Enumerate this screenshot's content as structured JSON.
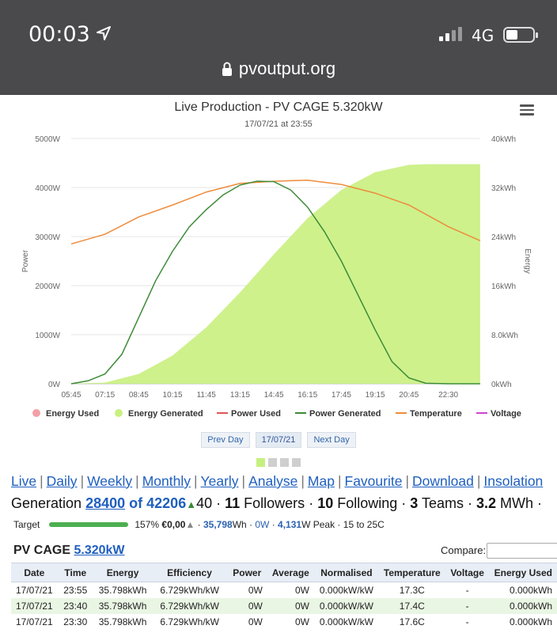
{
  "status": {
    "time": "00:03",
    "network": "4G"
  },
  "browser": {
    "url": "pvoutput.org"
  },
  "colors": {
    "energy_generated": "#c9f07f",
    "power_generated": "#3d8b37",
    "temperature": "#ee8c3c",
    "energy_used": "#f2a0a6",
    "power_used": "#e05555",
    "voltage": "#cc44cc"
  },
  "chart_data": {
    "type": "area",
    "title": "Live Production - PV CAGE 5.320kW",
    "subtitle": "17/07/21 at 23:55",
    "ylabel": "Power",
    "y2label": "Energy",
    "ylim": [
      0,
      5000
    ],
    "y2lim": [
      0,
      40
    ],
    "y_ticks": [
      "0W",
      "1000W",
      "2000W",
      "3000W",
      "4000W",
      "5000W"
    ],
    "y2_ticks": [
      "0kWh",
      "8.0kWh",
      "16kWh",
      "24kWh",
      "32kWh",
      "40kWh"
    ],
    "x_ticks": [
      "05:45",
      "07:15",
      "08:45",
      "10:15",
      "11:45",
      "13:15",
      "14:45",
      "16:15",
      "17:45",
      "19:15",
      "20:45",
      "22:30"
    ],
    "legend": [
      "Energy Used",
      "Energy Generated",
      "Power Used",
      "Power Generated",
      "Temperature",
      "Voltage"
    ],
    "series": [
      {
        "name": "Energy Generated",
        "unit": "kWh",
        "x": [
          "05:45",
          "07:15",
          "08:45",
          "10:15",
          "11:45",
          "13:15",
          "14:45",
          "16:15",
          "17:45",
          "19:15",
          "20:45",
          "21:30",
          "22:30",
          "23:55"
        ],
        "values": [
          0,
          0.2,
          1.6,
          4.6,
          9.2,
          14.9,
          21.1,
          27.0,
          31.6,
          34.5,
          35.7,
          35.8,
          35.8,
          35.8
        ]
      },
      {
        "name": "Power Generated",
        "unit": "W",
        "x": [
          "05:45",
          "06:30",
          "07:15",
          "08:00",
          "08:45",
          "09:30",
          "10:15",
          "11:00",
          "11:45",
          "12:30",
          "13:15",
          "14:00",
          "14:45",
          "15:30",
          "16:15",
          "17:00",
          "17:45",
          "18:30",
          "19:15",
          "20:00",
          "20:45",
          "21:30",
          "22:30",
          "23:55"
        ],
        "values": [
          0,
          60,
          200,
          600,
          1350,
          2100,
          2700,
          3200,
          3550,
          3850,
          4050,
          4130,
          4120,
          3950,
          3600,
          3100,
          2500,
          1800,
          1100,
          450,
          120,
          10,
          0,
          0
        ]
      },
      {
        "name": "Temperature",
        "unit": "C",
        "x": [
          "05:45",
          "07:15",
          "08:45",
          "10:15",
          "11:45",
          "13:15",
          "14:45",
          "16:15",
          "17:45",
          "19:15",
          "20:45",
          "22:30",
          "23:55"
        ],
        "values": [
          17.0,
          17.9,
          19.5,
          20.6,
          21.8,
          22.6,
          22.8,
          22.9,
          22.5,
          21.7,
          20.6,
          18.6,
          17.3
        ]
      }
    ]
  },
  "chart_nav": {
    "prev": "Prev Day",
    "date": "17/07/21",
    "next": "Next Day"
  },
  "links": [
    "Live",
    "Daily",
    "Weekly",
    "Monthly",
    "Yearly",
    "Analyse",
    "Map",
    "Favourite",
    "Download",
    "Insolation"
  ],
  "generation": {
    "label": "Generation",
    "rank": "28400",
    "of_text": "of 42206",
    "change": "40",
    "followers": "11",
    "followers_label": "Followers",
    "following": "10",
    "following_label": "Following",
    "teams": "3",
    "teams_label": "Teams",
    "total": "3.2",
    "total_unit": "MWh"
  },
  "target": {
    "label": "Target",
    "percent": 157,
    "percent_text": "157%",
    "cost": "€0,00",
    "energy": "35,798",
    "energy_unit": "Wh",
    "power": "0W",
    "peak": "4,131",
    "peak_unit": "W Peak",
    "temp_range": "15 to 25C"
  },
  "system": {
    "name": "PV CAGE",
    "size": "5.320kW",
    "compare_label": "Compare:",
    "compare_value": ""
  },
  "table": {
    "headers": [
      "Date",
      "Time",
      "Energy",
      "Efficiency",
      "Power",
      "Average",
      "Normalised",
      "Temperature",
      "Voltage",
      "Energy Used"
    ],
    "rows": [
      [
        "17/07/21",
        "23:55",
        "35.798kWh",
        "6.729kWh/kW",
        "0W",
        "0W",
        "0.000kW/kW",
        "17.3C",
        "-",
        "0.000kWh"
      ],
      [
        "17/07/21",
        "23:40",
        "35.798kWh",
        "6.729kWh/kW",
        "0W",
        "0W",
        "0.000kW/kW",
        "17.4C",
        "-",
        "0.000kWh"
      ],
      [
        "17/07/21",
        "23:30",
        "35.798kWh",
        "6.729kWh/kW",
        "0W",
        "0W",
        "0.000kW/kW",
        "17.6C",
        "-",
        "0.000kWh"
      ]
    ]
  }
}
